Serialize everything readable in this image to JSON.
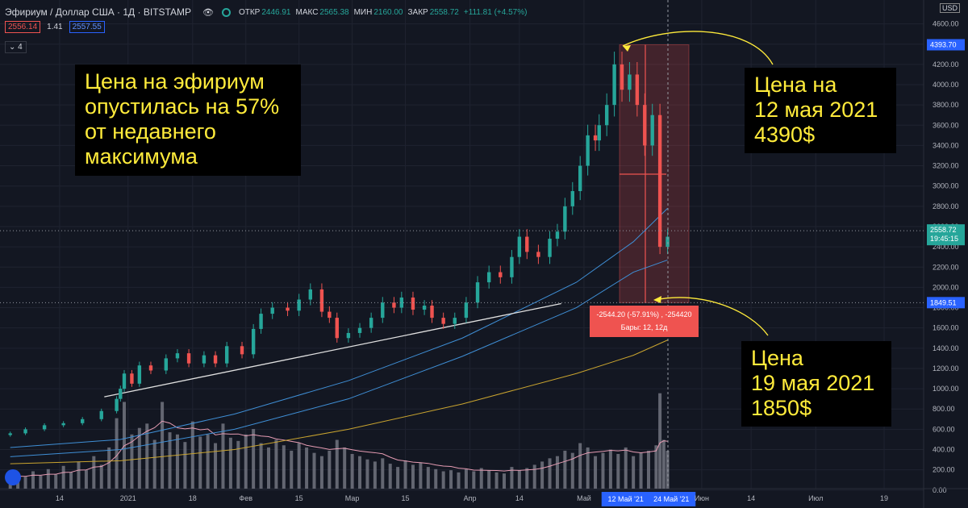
{
  "header": {
    "symbol": "Эфириум / Доллар США · 1Д · BITSTAMP",
    "open_label": "ОТКР",
    "open": "2446.91",
    "high_label": "МАКС",
    "high": "2565.38",
    "low_label": "МИН",
    "low": "2160.00",
    "close_label": "ЗАКР",
    "close": "2558.72",
    "change": "+111.81 (+4.57%)",
    "bid": "2556.14",
    "spread": "1.41",
    "ask": "2557.55",
    "indicators_count": "4",
    "currency": "USD"
  },
  "annotations": {
    "left": "Цена на эфириум\nопустилась на 57%\nот недавнего\nмаксимума",
    "top_right": "Цена на\n12 мая 2021\n4390$",
    "bottom_right": "Цена\n19 мая 2021\n1850$"
  },
  "measure": {
    "line1": "-2544.20 (-57.91%) , -254420",
    "line2": "Бары: 12, 12д"
  },
  "chart_data": {
    "type": "line",
    "y_ticks": [
      0,
      200,
      400,
      600,
      800,
      1000,
      1200,
      1400,
      1600,
      1800,
      2000,
      2200,
      2400,
      2600,
      2800,
      3000,
      3200,
      3400,
      3600,
      3800,
      4000,
      4200,
      4400,
      4600
    ],
    "x_ticks": [
      {
        "label": "14",
        "day": 14
      },
      {
        "label": "2021",
        "day": 32
      },
      {
        "label": "18",
        "day": 49
      },
      {
        "label": "Фев",
        "day": 63
      },
      {
        "label": "15",
        "day": 77
      },
      {
        "label": "Мар",
        "day": 91
      },
      {
        "label": "15",
        "day": 105
      },
      {
        "label": "Апр",
        "day": 122
      },
      {
        "label": "14",
        "day": 135
      },
      {
        "label": "Май",
        "day": 152
      },
      {
        "label": "12 Май '21",
        "day": 163
      },
      {
        "label": "24 Май '21",
        "day": 175
      },
      {
        "label": "Июн",
        "day": 183
      },
      {
        "label": "14",
        "day": 196
      },
      {
        "label": "Июл",
        "day": 213
      },
      {
        "label": "19",
        "day": 231
      }
    ],
    "price_labels": {
      "high": "4393.70",
      "last": "2558.72",
      "timer": "19:45:15",
      "low": "1849.51"
    },
    "ylim": [
      0,
      4700
    ],
    "close": [
      [
        1,
        560
      ],
      [
        5,
        600
      ],
      [
        10,
        640
      ],
      [
        15,
        660
      ],
      [
        20,
        700
      ],
      [
        25,
        780
      ],
      [
        29,
        900
      ],
      [
        30,
        1000
      ],
      [
        31,
        1150
      ],
      [
        33,
        1050
      ],
      [
        35,
        1230
      ],
      [
        38,
        1180
      ],
      [
        42,
        1300
      ],
      [
        45,
        1350
      ],
      [
        48,
        1250
      ],
      [
        52,
        1330
      ],
      [
        55,
        1250
      ],
      [
        58,
        1420
      ],
      [
        62,
        1340
      ],
      [
        65,
        1590
      ],
      [
        67,
        1740
      ],
      [
        70,
        1800
      ],
      [
        74,
        1770
      ],
      [
        77,
        1880
      ],
      [
        80,
        1980
      ],
      [
        83,
        1760
      ],
      [
        85,
        1700
      ],
      [
        87,
        1500
      ],
      [
        90,
        1550
      ],
      [
        93,
        1600
      ],
      [
        96,
        1700
      ],
      [
        99,
        1850
      ],
      [
        102,
        1800
      ],
      [
        104,
        1900
      ],
      [
        107,
        1780
      ],
      [
        110,
        1820
      ],
      [
        112,
        1700
      ],
      [
        115,
        1640
      ],
      [
        118,
        1700
      ],
      [
        121,
        1850
      ],
      [
        124,
        2050
      ],
      [
        127,
        2150
      ],
      [
        130,
        2100
      ],
      [
        133,
        2300
      ],
      [
        135,
        2500
      ],
      [
        137,
        2350
      ],
      [
        140,
        2300
      ],
      [
        143,
        2480
      ],
      [
        145,
        2550
      ],
      [
        147,
        2800
      ],
      [
        149,
        2950
      ],
      [
        151,
        3200
      ],
      [
        153,
        3500
      ],
      [
        155,
        3450
      ],
      [
        156,
        3600
      ],
      [
        158,
        3800
      ],
      [
        160,
        4200
      ],
      [
        162,
        3950
      ],
      [
        164,
        4100
      ],
      [
        166,
        3800
      ],
      [
        168,
        3400
      ],
      [
        170,
        3700
      ],
      [
        172,
        2400
      ],
      [
        174,
        2500
      ]
    ],
    "ma1": [
      [
        1,
        420
      ],
      [
        30,
        500
      ],
      [
        60,
        750
      ],
      [
        90,
        1080
      ],
      [
        120,
        1500
      ],
      [
        150,
        2050
      ],
      [
        165,
        2450
      ],
      [
        174,
        2780
      ]
    ],
    "ma2": [
      [
        1,
        330
      ],
      [
        30,
        400
      ],
      [
        60,
        600
      ],
      [
        90,
        900
      ],
      [
        120,
        1320
      ],
      [
        150,
        1800
      ],
      [
        165,
        2150
      ],
      [
        174,
        2270
      ]
    ],
    "ma3": [
      [
        1,
        260
      ],
      [
        30,
        290
      ],
      [
        60,
        400
      ],
      [
        90,
        600
      ],
      [
        120,
        850
      ],
      [
        150,
        1150
      ],
      [
        165,
        1330
      ],
      [
        174,
        1480
      ]
    ],
    "trendline": [
      [
        30,
        1000
      ],
      [
        146,
        1840
      ]
    ],
    "volume": [
      [
        1,
        90
      ],
      [
        3,
        140
      ],
      [
        5,
        110
      ],
      [
        7,
        160
      ],
      [
        9,
        120
      ],
      [
        11,
        180
      ],
      [
        13,
        130
      ],
      [
        15,
        210
      ],
      [
        17,
        150
      ],
      [
        19,
        250
      ],
      [
        21,
        170
      ],
      [
        23,
        300
      ],
      [
        25,
        220
      ],
      [
        27,
        380
      ],
      [
        29,
        650
      ],
      [
        31,
        800
      ],
      [
        33,
        500
      ],
      [
        35,
        560
      ],
      [
        37,
        600
      ],
      [
        39,
        450
      ],
      [
        41,
        800
      ],
      [
        43,
        520
      ],
      [
        45,
        500
      ],
      [
        47,
        430
      ],
      [
        49,
        620
      ],
      [
        51,
        480
      ],
      [
        53,
        500
      ],
      [
        55,
        420
      ],
      [
        57,
        600
      ],
      [
        59,
        470
      ],
      [
        61,
        440
      ],
      [
        63,
        500
      ],
      [
        65,
        550
      ],
      [
        67,
        420
      ],
      [
        69,
        380
      ],
      [
        71,
        450
      ],
      [
        73,
        400
      ],
      [
        75,
        350
      ],
      [
        77,
        420
      ],
      [
        79,
        380
      ],
      [
        81,
        330
      ],
      [
        83,
        300
      ],
      [
        85,
        350
      ],
      [
        87,
        450
      ],
      [
        89,
        380
      ],
      [
        91,
        320
      ],
      [
        93,
        300
      ],
      [
        95,
        270
      ],
      [
        97,
        250
      ],
      [
        99,
        280
      ],
      [
        101,
        230
      ],
      [
        103,
        200
      ],
      [
        105,
        260
      ],
      [
        107,
        220
      ],
      [
        109,
        240
      ],
      [
        111,
        200
      ],
      [
        113,
        180
      ],
      [
        115,
        160
      ],
      [
        117,
        170
      ],
      [
        119,
        150
      ],
      [
        121,
        180
      ],
      [
        123,
        160
      ],
      [
        125,
        190
      ],
      [
        127,
        170
      ],
      [
        129,
        150
      ],
      [
        131,
        140
      ],
      [
        133,
        200
      ],
      [
        135,
        170
      ],
      [
        137,
        190
      ],
      [
        139,
        220
      ],
      [
        141,
        250
      ],
      [
        143,
        280
      ],
      [
        145,
        300
      ],
      [
        147,
        350
      ],
      [
        149,
        330
      ],
      [
        151,
        420
      ],
      [
        153,
        380
      ],
      [
        155,
        300
      ],
      [
        157,
        330
      ],
      [
        159,
        360
      ],
      [
        161,
        320
      ],
      [
        163,
        380
      ],
      [
        165,
        300
      ],
      [
        167,
        330
      ],
      [
        169,
        350
      ],
      [
        171,
        400
      ],
      [
        172,
        880
      ],
      [
        173,
        450
      ],
      [
        174,
        350
      ]
    ]
  }
}
